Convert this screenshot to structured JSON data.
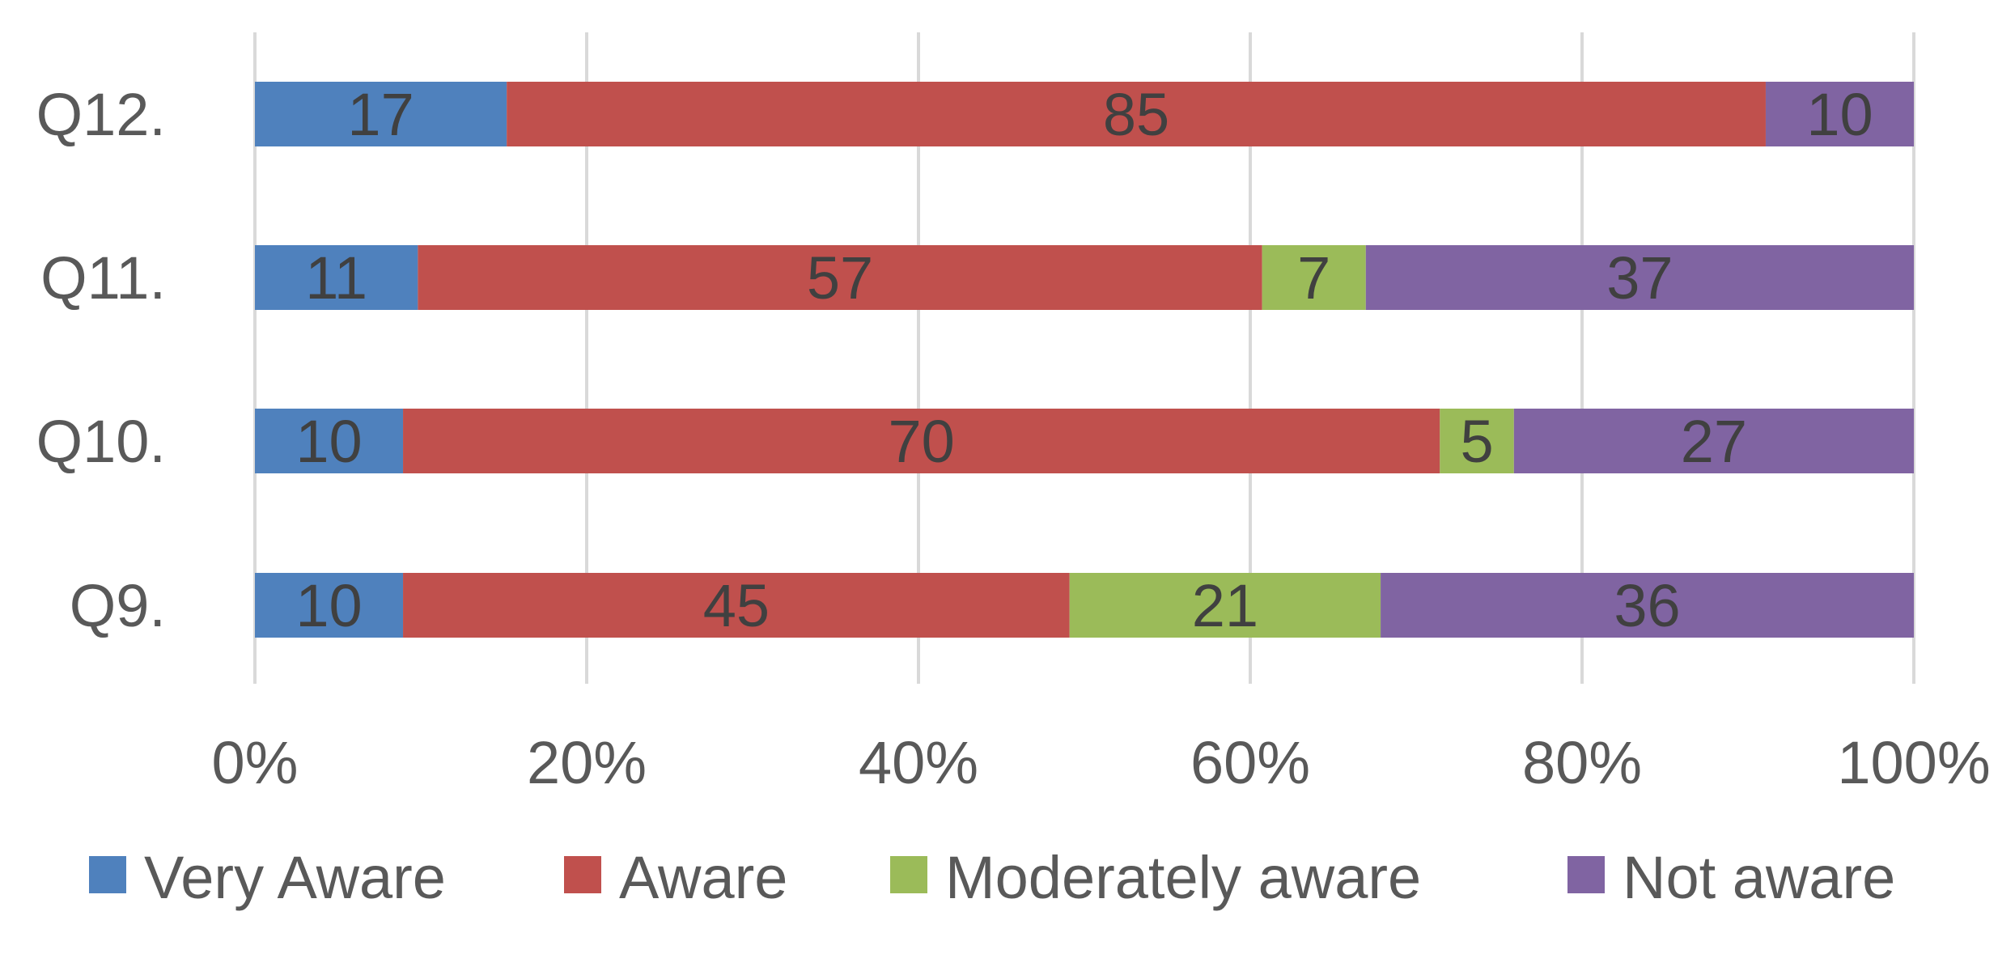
{
  "chart_data": {
    "type": "bar",
    "orientation": "horizontal",
    "stacking": "percent",
    "categories": [
      "Q12.",
      "Q11.",
      "Q10.",
      "Q9."
    ],
    "series": [
      {
        "name": "Very Aware",
        "color": "#4f81bd",
        "values": [
          17,
          11,
          10,
          10
        ]
      },
      {
        "name": "Aware",
        "color": "#c0504d",
        "values": [
          85,
          57,
          70,
          45
        ]
      },
      {
        "name": "Moderately aware",
        "color": "#9bbb59",
        "values": [
          0,
          7,
          5,
          21
        ]
      },
      {
        "name": "Not aware",
        "color": "#8064a2",
        "values": [
          10,
          37,
          27,
          36
        ]
      }
    ],
    "xaxis": {
      "ticks": [
        "0%",
        "20%",
        "40%",
        "60%",
        "80%",
        "100%"
      ],
      "range": [
        0,
        100
      ]
    },
    "grid": true,
    "legend": "bottom"
  }
}
